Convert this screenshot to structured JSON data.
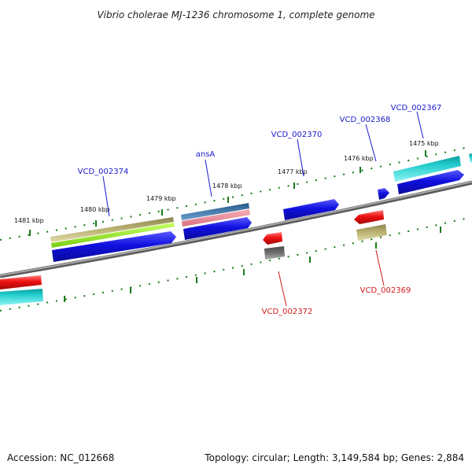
{
  "title": "Vibrio cholerae MJ-1236 chromosome 1, complete genome",
  "footer": {
    "accession": "Accession: NC_012668",
    "summary": "Topology: circular; Length: 3,149,584 bp; Genes: 2,884"
  },
  "ticks": [
    "1481 kbp",
    "1480 kbp",
    "1479 kbp",
    "1478 kbp",
    "1477 kbp",
    "1476 kbp",
    "1475 kbp"
  ],
  "genes": [
    {
      "label": "VCD_002374",
      "color": "#1a1ad0"
    },
    {
      "label": "ansA",
      "color": "#1a1ad0"
    },
    {
      "label": "VCD_002370",
      "color": "#1a1ad0"
    },
    {
      "label": "VCD_002368",
      "color": "#1a1ad0"
    },
    {
      "label": "VCD_002367",
      "color": "#1a1ad0"
    },
    {
      "label": "VCD_002372",
      "color": "#d01a1a"
    },
    {
      "label": "VCD_002369",
      "color": "#d01a1a"
    }
  ],
  "colors": {
    "backbone": "#8a8a8a",
    "cds_blue": "#1010e0",
    "cds_red": "#ee1010",
    "cyan": "#00d4d4",
    "khaki": "#b8b070",
    "lime": "#99ee22",
    "steelblue": "#4a7fb0",
    "pink": "#ef8c96",
    "grey": "#707070",
    "tick_green": "#1a7a1a"
  }
}
